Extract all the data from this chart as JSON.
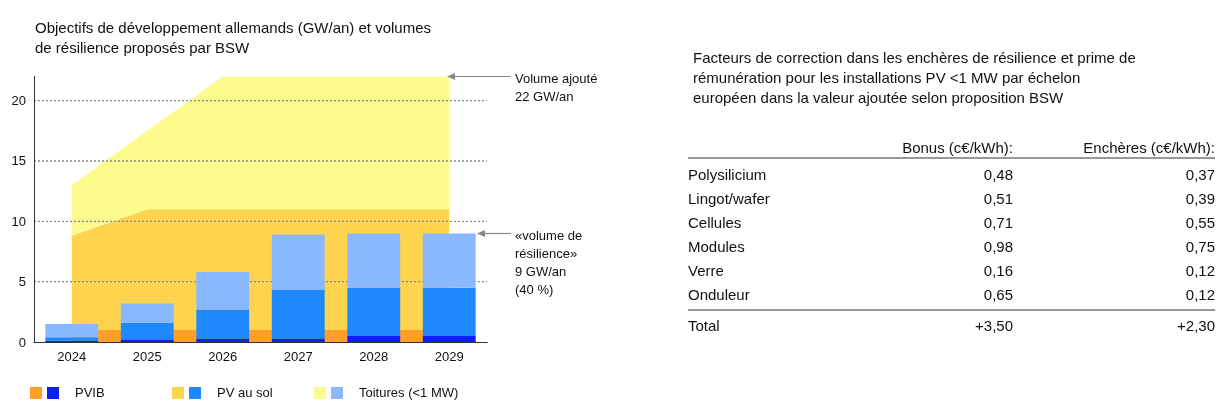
{
  "chart_data": [
    {
      "type": "area",
      "title": "Objectifs de développement allemands (GW/an) et volumes de résilience proposés par BSW",
      "categories": [
        "2024",
        "2025",
        "2026",
        "2027",
        "2028",
        "2029"
      ],
      "stacked": true,
      "ylim": [
        0,
        22
      ],
      "yticks": [
        0,
        5,
        10,
        15,
        20
      ],
      "tick_labels": "y",
      "grid": "y",
      "marker": "none",
      "series": [
        {
          "color": "#fed44e",
          "values": [
            8.8,
            11,
            11,
            11,
            11,
            11
          ]
        },
        {
          "color": "#fbfb8e",
          "values": [
            4.2,
            6.5,
            11,
            11,
            11,
            11
          ]
        }
      ],
      "bands": [
        {
          "axis": "y",
          "from": 0,
          "to": 1,
          "color": "#ff9f27"
        }
      ],
      "annotations": [
        {
          "text": "Volume ajouté\n22 GW/an",
          "x": "2029",
          "y": 22
        }
      ]
    },
    {
      "type": "bar",
      "categories": [
        "2024",
        "2025",
        "2026",
        "2027",
        "2028",
        "2029"
      ],
      "stacked": true,
      "ylim": [
        0,
        22
      ],
      "tick_labels": "x",
      "legend": "bottom",
      "series": [
        {
          "name": "PVIB",
          "color": "#0a1eff",
          "values": [
            0.1,
            0.2,
            0.3,
            0.3,
            0.5,
            0.5
          ]
        },
        {
          "name": "PV au sol",
          "color": "#1e88ff",
          "values": [
            0.3,
            1.4,
            2.4,
            4,
            4,
            4
          ]
        },
        {
          "name": "Toitures (<1 MW)",
          "color": "#89b8ff",
          "values": [
            1.1,
            1.6,
            3.1,
            4.6,
            4.5,
            4.5
          ]
        }
      ],
      "annotations": [
        "«volume de\nrésilience»\n9 GW/an\n(40 %)"
      ]
    },
    {
      "type": "other",
      "title": "Facteurs de correction dans les enchères de résilience et prime de rémunération pour les installations PV <1 MW par échelon européen dans la valeur ajoutée selon proposition BSW",
      "categories": [
        "Polysilicium",
        "Lingot/wafer",
        "Cellules",
        "Modules",
        "Verre",
        "Onduleur"
      ],
      "series": [
        {
          "name": "Bonus (c€/kWh):",
          "values": [
            0.48,
            0.51,
            0.71,
            0.98,
            0.16,
            0.65
          ],
          "value_labels": [
            "0,48",
            "0,51",
            "0,71",
            "0,98",
            "0,16",
            "0,65"
          ]
        },
        {
          "name": "Enchères (c€/kWh):",
          "values": [
            0.37,
            0.39,
            0.55,
            0.75,
            0.12,
            0.12
          ],
          "value_labels": [
            "0,37",
            "0,39",
            "0,55",
            "0,75",
            "0,12",
            "0,12"
          ]
        }
      ],
      "totals": [
        "+3,50",
        "+2,30"
      ],
      "annotations": [
        "Total"
      ]
    }
  ]
}
